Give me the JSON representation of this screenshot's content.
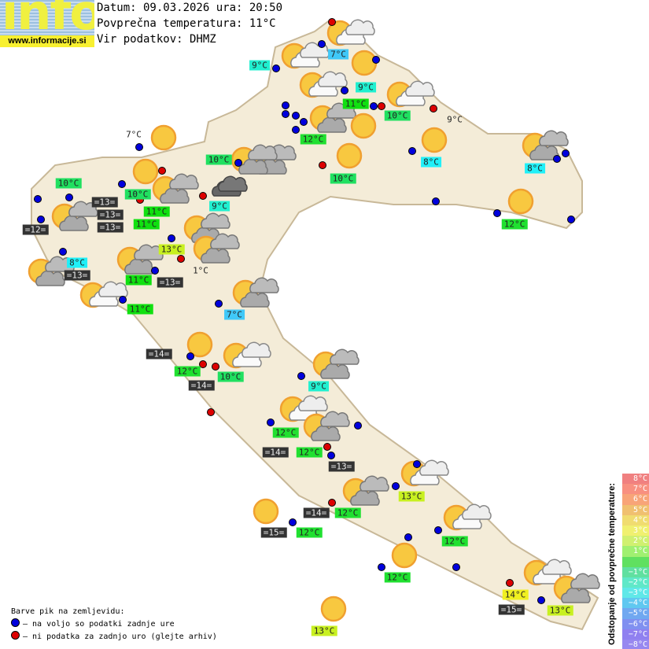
{
  "logo": {
    "text": "info",
    "url": "www.informacije.si"
  },
  "header": {
    "date_line": "Datum: 09.03.2026 ura: 20:50",
    "avg_temp_line": "Povprečna temperatura: 11°C",
    "source_line": "Vir podatkov: DHMZ"
  },
  "colors": {
    "map_fill": "#f4ecd8",
    "map_stroke": "#c8b898",
    "dot_available": "#0000dd",
    "dot_missing": "#dd0000",
    "sea_label_bg": "#333333"
  },
  "temperatures": [
    {
      "text": "7°C",
      "color": "#40c8f8"
    },
    {
      "text": "9°C",
      "color": "#20f0d0"
    },
    {
      "text": "9°C",
      "color": "#20f0d0"
    },
    {
      "text": "11°C",
      "color": "#10e010"
    },
    {
      "text": "10°C",
      "color": "#20e060"
    },
    {
      "text": "12°C",
      "color": "#20e030"
    },
    {
      "text": "9°C",
      "color": ""
    },
    {
      "text": "7°C",
      "color": ""
    },
    {
      "text": "10°C",
      "color": "#20e060"
    },
    {
      "text": "8°C",
      "color": "#20f0f8"
    },
    {
      "text": "8°C",
      "color": "#20f0f8"
    },
    {
      "text": "10°C",
      "color": "#20e060"
    },
    {
      "text": "10°C",
      "color": "#20e060"
    },
    {
      "text": "10°C",
      "color": "#20e060"
    },
    {
      "text": "9°C",
      "color": "#20f0d0"
    },
    {
      "text": "11°C",
      "color": "#10e010"
    },
    {
      "text": "11°C",
      "color": "#10e010"
    },
    {
      "text": "12°C",
      "color": "#20e030"
    },
    {
      "text": "13°C",
      "color": "#c8f020"
    },
    {
      "text": "8°C",
      "color": "#20f0f8"
    },
    {
      "text": "1°C",
      "color": ""
    },
    {
      "text": "11°C",
      "color": "#10e010"
    },
    {
      "text": "11°C",
      "color": "#10e010"
    },
    {
      "text": "7°C",
      "color": "#40c8f8"
    },
    {
      "text": "12°C",
      "color": "#20e030"
    },
    {
      "text": "10°C",
      "color": "#20e060"
    },
    {
      "text": "9°C",
      "color": "#20f0d0"
    },
    {
      "text": "12°C",
      "color": "#20e030"
    },
    {
      "text": "12°C",
      "color": "#20e030"
    },
    {
      "text": "13°C",
      "color": "#c8f020"
    },
    {
      "text": "12°C",
      "color": "#20e030"
    },
    {
      "text": "12°C",
      "color": "#20e030"
    },
    {
      "text": "12°C",
      "color": "#20e030"
    },
    {
      "text": "12°C",
      "color": "#20e030"
    },
    {
      "text": "14°C",
      "color": "#f0f020"
    },
    {
      "text": "13°C",
      "color": "#c8f020"
    },
    {
      "text": "13°C",
      "color": "#c8f020"
    }
  ],
  "sea_temperatures": [
    "=13=",
    "=13=",
    "=13=",
    "=12=",
    "=13=",
    "=13=",
    "=14=",
    "=14=",
    "=14=",
    "=13=",
    "=14=",
    "=15=",
    "=15="
  ],
  "weather_icons": [
    "sun-cloud",
    "sun-cloud",
    "sun",
    "sun-cloud",
    "sun-cloud",
    "sun-cloud-grey",
    "sun",
    "sun",
    "sun",
    "sun-cloud-grey",
    "sun-cloud-grey",
    "sun-cloud-grey",
    "sun",
    "sun-cloud-grey",
    "cloud-grey",
    "sun-cloud",
    "sun-cloud-grey",
    "sun",
    "sun-cloud-grey",
    "sun-cloud-grey",
    "sun-cloud-grey",
    "sun-cloud-grey",
    "sun-cloud",
    "sun-cloud-grey",
    "sun",
    "sun-cloud",
    "sun-cloud-grey",
    "sun-cloud",
    "sun-cloud-grey",
    "sun-cloud",
    "sun",
    "sun",
    "sun-cloud",
    "sun",
    "sun-cloud-grey",
    "sun-cloud-grey",
    "sun"
  ],
  "stations": [
    "available",
    "missing",
    "available",
    "available",
    "available",
    "available",
    "missing",
    "missing",
    "available",
    "available",
    "available",
    "available",
    "available",
    "missing",
    "available",
    "available",
    "available",
    "missing",
    "available",
    "available",
    "available",
    "available",
    "missing",
    "available",
    "missing",
    "available",
    "available",
    "available",
    "available",
    "available",
    "available",
    "missing",
    "available",
    "available",
    "available",
    "missing",
    "missing",
    "available",
    "available",
    "missing",
    "available",
    "available",
    "missing",
    "available",
    "available",
    "available",
    "missing",
    "available",
    "available",
    "available",
    "available",
    "available",
    "missing",
    "available"
  ],
  "legend": {
    "title": "Barve pik na zemljevidu:",
    "available": "– na voljo so podatki zadnje ure",
    "missing": "– ni podatka za zadnjo uro (glejte arhiv)"
  },
  "scale": {
    "title": "Odstopanje od povprečne temperature:",
    "steps": [
      {
        "label": "8°C",
        "color": "#f08080"
      },
      {
        "label": "7°C",
        "color": "#f89080"
      },
      {
        "label": "6°C",
        "color": "#f8a478"
      },
      {
        "label": "5°C",
        "color": "#f0c070"
      },
      {
        "label": "4°C",
        "color": "#f0dc70"
      },
      {
        "label": "3°C",
        "color": "#f0f070"
      },
      {
        "label": "2°C",
        "color": "#d0f070"
      },
      {
        "label": "1°C",
        "color": "#a0f070"
      },
      {
        "label": "",
        "color": "#60e060"
      },
      {
        "label": "−1°C",
        "color": "#60e0a0"
      },
      {
        "label": "−2°C",
        "color": "#60e8c8"
      },
      {
        "label": "−3°C",
        "color": "#60e8e8"
      },
      {
        "label": "−4°C",
        "color": "#60c8f0"
      },
      {
        "label": "−5°C",
        "color": "#70a8f0"
      },
      {
        "label": "−6°C",
        "color": "#8090f0"
      },
      {
        "label": "−7°C",
        "color": "#9080f0"
      },
      {
        "label": "−8°C",
        "color": "#9888f0"
      }
    ]
  }
}
